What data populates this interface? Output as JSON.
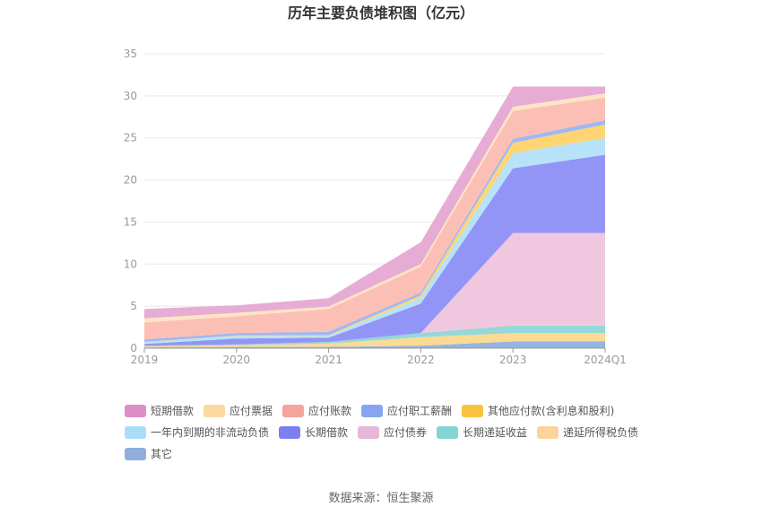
{
  "chart_data": {
    "type": "area",
    "title": "历年主要负债堆积图（亿元）",
    "x": [
      "2019",
      "2020",
      "2021",
      "2022",
      "2023",
      "2024Q1"
    ],
    "ylim": [
      0,
      35
    ],
    "yticks": [
      "0",
      "5",
      "10",
      "15",
      "20",
      "25",
      "30",
      "35"
    ],
    "grid": true,
    "legend_position": "bottom",
    "series": [
      {
        "name": "其它",
        "color": "#8fb0e0",
        "values": [
          0.1,
          0.15,
          0.15,
          0.3,
          0.8,
          0.8
        ]
      },
      {
        "name": "递延所得税负债",
        "color": "#fbd88d",
        "values": [
          0.1,
          0.2,
          0.4,
          1.0,
          1.0,
          1.0
        ]
      },
      {
        "name": "长期递延收益",
        "color": "#8fd6d6",
        "values": [
          0.1,
          0.1,
          0.2,
          0.5,
          0.9,
          0.9
        ]
      },
      {
        "name": "应付债券",
        "color": "#eec5de",
        "values": [
          0,
          0,
          0,
          0,
          11.0,
          11.0
        ]
      },
      {
        "name": "长期借款",
        "color": "#8c8ff5",
        "values": [
          0.2,
          0.7,
          0.5,
          3.5,
          7.7,
          9.3
        ]
      },
      {
        "name": "一年内到期的非流动负债",
        "color": "#b3e0f7",
        "values": [
          0.2,
          0.3,
          0.2,
          0.7,
          1.8,
          2.0
        ]
      },
      {
        "name": "其他应付款(含利息和股利)",
        "color": "#ffd36b",
        "values": [
          0.05,
          0.05,
          0.1,
          0.3,
          1.2,
          1.6
        ]
      },
      {
        "name": "应付职工薪酬",
        "color": "#9ab4f2",
        "values": [
          0.3,
          0.3,
          0.4,
          0.3,
          0.5,
          0.5
        ]
      },
      {
        "name": "应付账款",
        "color": "#fbbcb2",
        "values": [
          2.0,
          2.0,
          2.7,
          3.1,
          3.3,
          2.7
        ]
      },
      {
        "name": "应付票据",
        "color": "#fde4c0",
        "values": [
          0.5,
          0.4,
          0.3,
          0.3,
          0.5,
          0.5
        ]
      },
      {
        "name": "短期借款",
        "color": "#e6a8d2",
        "values": [
          1.1,
          0.9,
          1.0,
          2.6,
          2.4,
          0.8
        ]
      }
    ],
    "legend_order": [
      "短期借款",
      "应付票据",
      "应付账款",
      "应付职工薪酬",
      "其他应付款(含利息和股利)",
      "一年内到期的非流动负债",
      "长期借款",
      "应付债券",
      "长期递延收益",
      "递延所得税负债",
      "其它"
    ],
    "legend_colors": {
      "短期借款": "#de8ec6",
      "应付票据": "#fcd9a0",
      "应付账款": "#f4a49a",
      "应付职工薪酬": "#86a4ef",
      "其他应付款(含利息和股利)": "#f9c33d",
      "一年内到期的非流动负债": "#a9ddf7",
      "长期借款": "#7b7ff0",
      "应付债券": "#e6b7d6",
      "长期递延收益": "#84d4d6",
      "递延所得税负债": "#fcd49b",
      "其它": "#8fb0dd"
    }
  },
  "footer": {
    "source": "数据来源：恒生聚源"
  }
}
